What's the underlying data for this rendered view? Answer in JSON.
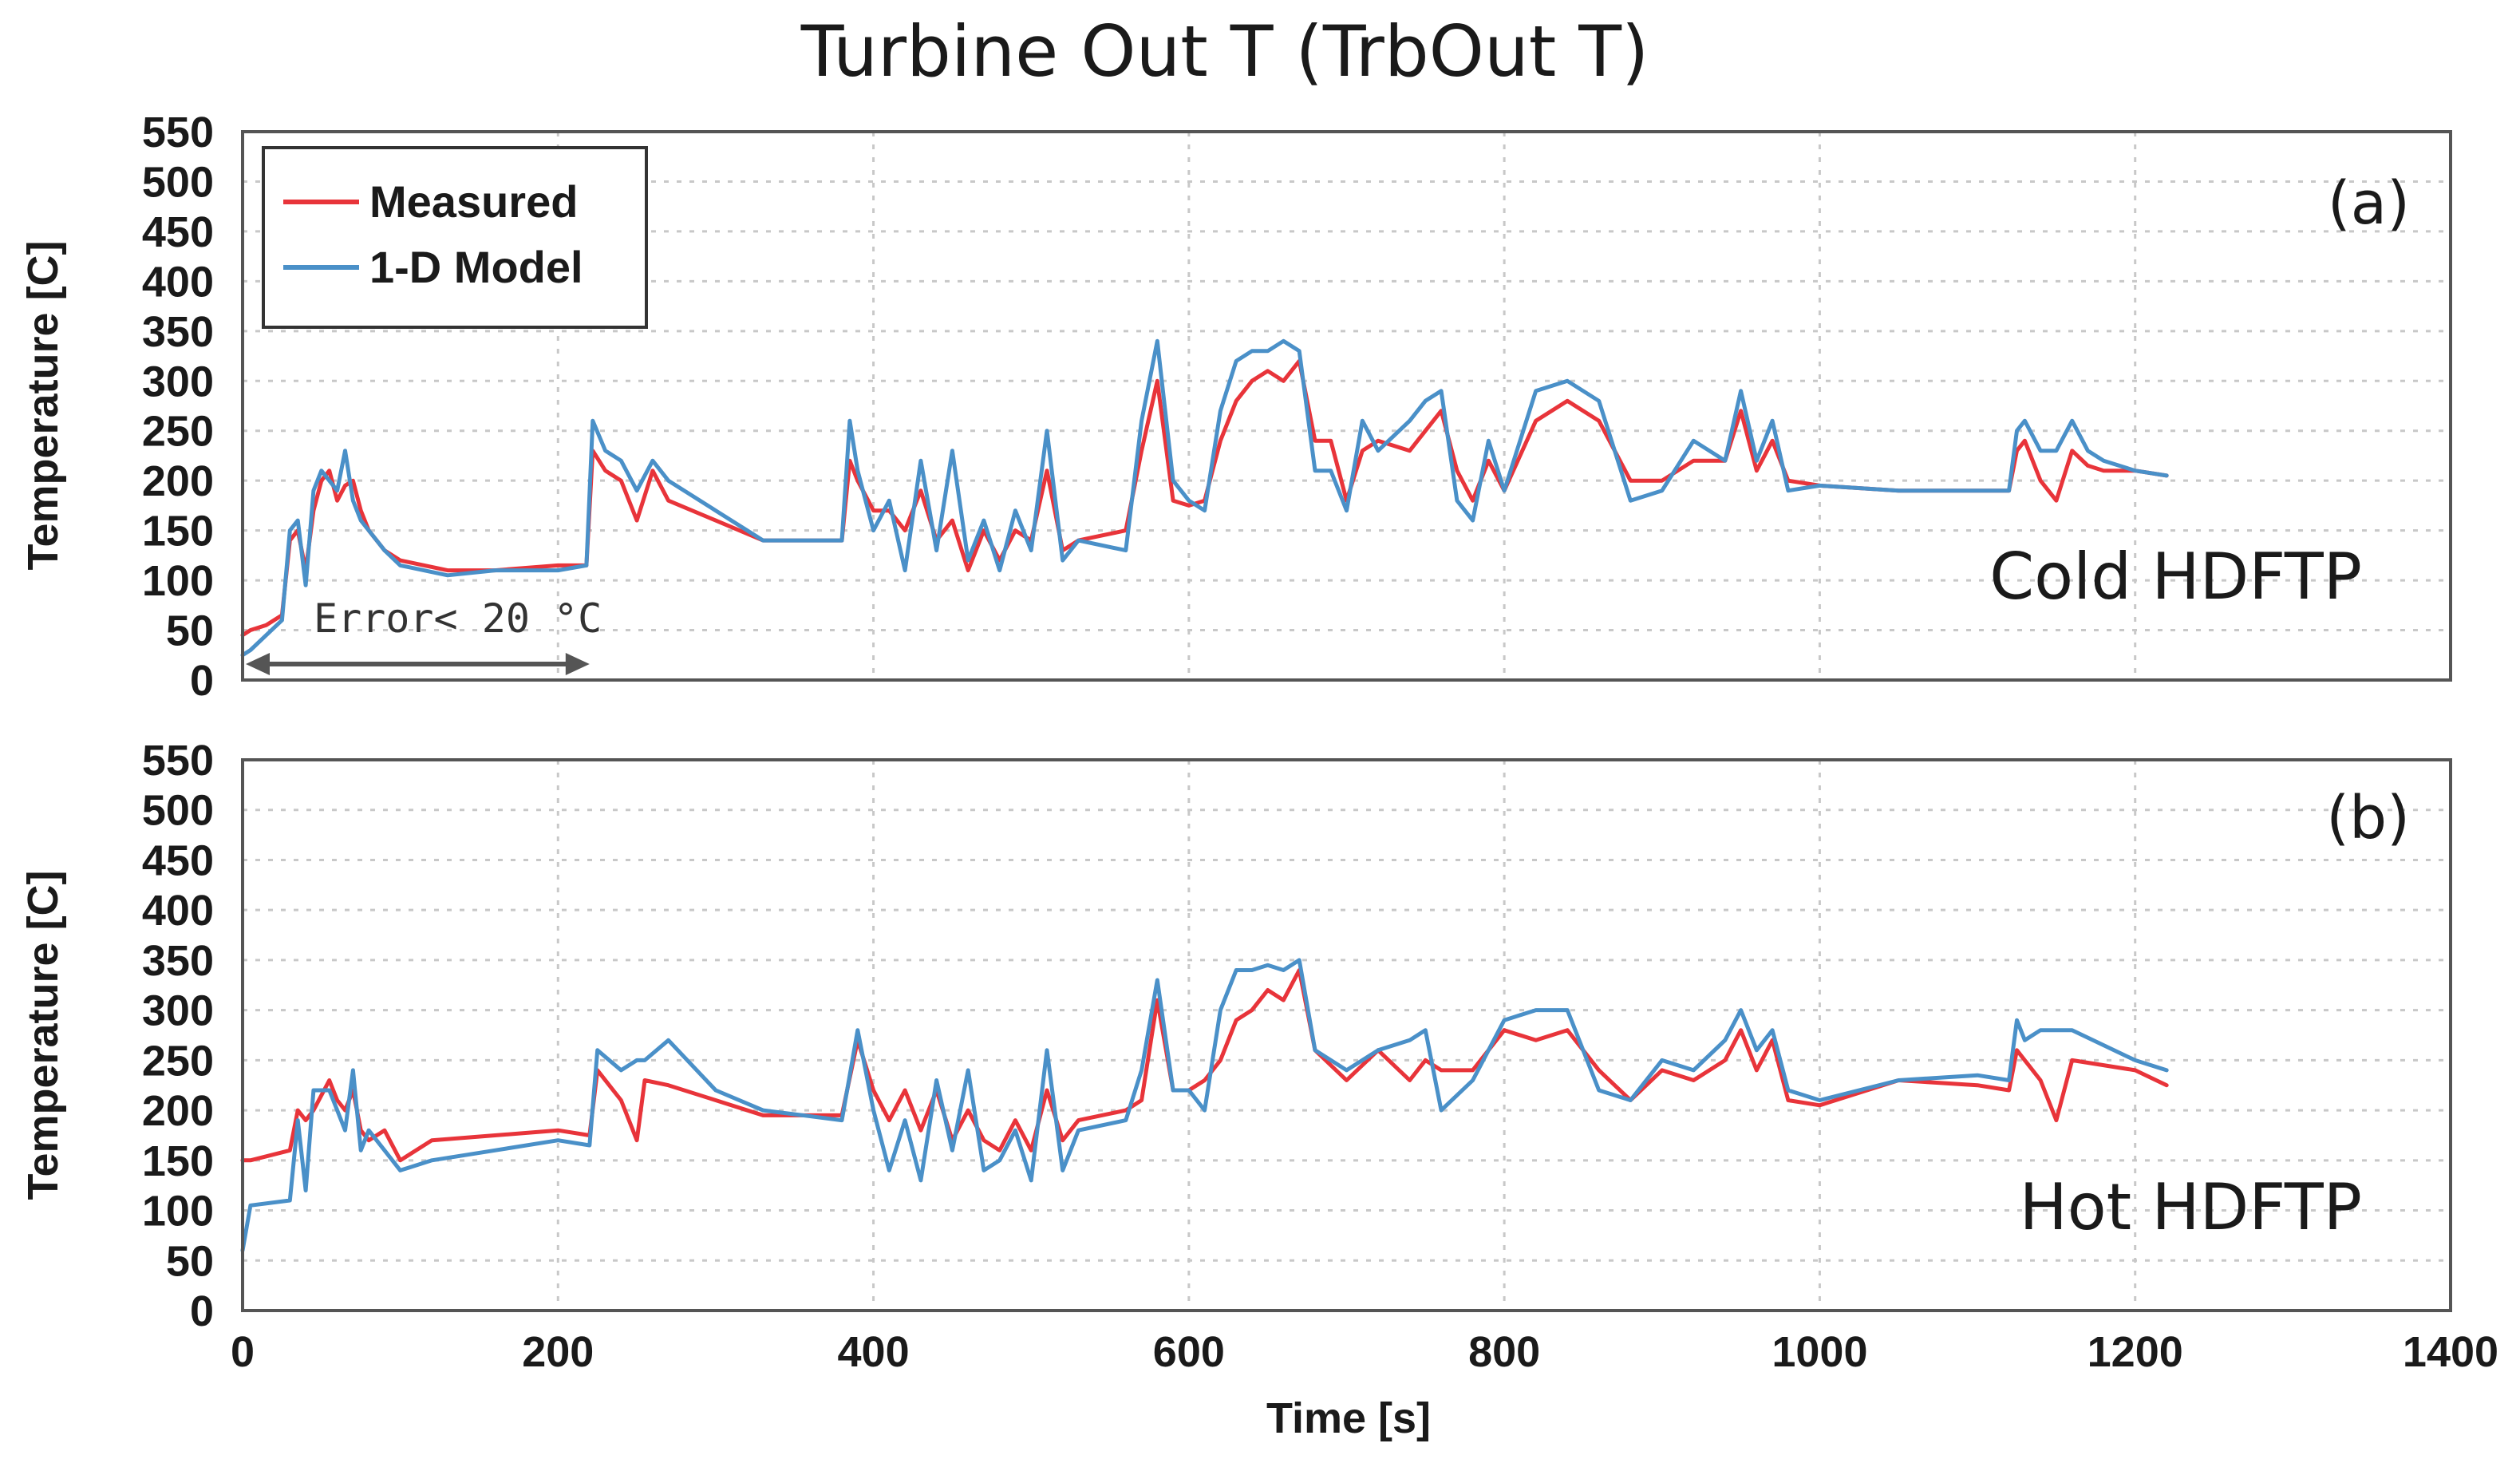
{
  "chart_data": {
    "title": "Turbine Out T (TrbOut T)",
    "type": "line",
    "legend": {
      "placement": "top-left",
      "entries": [
        {
          "name": "Measured",
          "color": "#e8343a"
        },
        {
          "name": "1-D Model",
          "color": "#4a90c8"
        }
      ]
    },
    "xlabel": "Time [s]",
    "xlim": [
      0,
      1400
    ],
    "xticks": [
      0,
      200,
      400,
      600,
      800,
      1000,
      1200,
      1400
    ],
    "xtick_labels": [
      "0",
      "200",
      "400",
      "600",
      "800",
      "1000",
      "1200",
      "1400"
    ],
    "grid": true,
    "panels": [
      {
        "label": "(a)",
        "condition": "Cold HDFTP",
        "ylabel": "Temperature [C]",
        "ylim": [
          0,
          550
        ],
        "yticks": [
          0,
          50,
          100,
          150,
          200,
          250,
          300,
          350,
          400,
          450,
          500,
          550
        ],
        "ytick_labels": [
          "0",
          "50",
          "100",
          "150",
          "200",
          "250",
          "300",
          "350",
          "400",
          "450",
          "500",
          "550"
        ],
        "annotation": {
          "text": "Error< 20 °C",
          "x_start": 0,
          "x_end": 220
        },
        "series": [
          {
            "name": "Measured",
            "color": "#e8343a",
            "x": [
              0,
              5,
              15,
              25,
              30,
              35,
              40,
              45,
              50,
              55,
              60,
              65,
              70,
              75,
              80,
              90,
              100,
              130,
              160,
              200,
              218,
              222,
              230,
              240,
              250,
              260,
              270,
              300,
              330,
              380,
              385,
              390,
              400,
              410,
              420,
              430,
              440,
              450,
              460,
              470,
              480,
              490,
              500,
              510,
              520,
              530,
              560,
              570,
              580,
              590,
              600,
              610,
              620,
              630,
              640,
              650,
              660,
              670,
              680,
              690,
              700,
              710,
              720,
              740,
              750,
              760,
              770,
              780,
              790,
              800,
              820,
              840,
              860,
              880,
              900,
              920,
              940,
              950,
              960,
              970,
              980,
              1000,
              1050,
              1100,
              1120,
              1125,
              1130,
              1140,
              1150,
              1160,
              1170,
              1180,
              1200,
              1220
            ],
            "y": [
              45,
              50,
              55,
              65,
              140,
              150,
              110,
              170,
              200,
              210,
              180,
              195,
              200,
              170,
              150,
              130,
              120,
              110,
              110,
              115,
              115,
              230,
              210,
              200,
              160,
              210,
              180,
              160,
              140,
              140,
              220,
              200,
              170,
              170,
              150,
              190,
              140,
              160,
              110,
              150,
              120,
              150,
              140,
              210,
              130,
              140,
              150,
              230,
              300,
              180,
              175,
              180,
              240,
              280,
              300,
              310,
              300,
              320,
              240,
              240,
              180,
              230,
              240,
              230,
              250,
              270,
              210,
              180,
              220,
              190,
              260,
              280,
              260,
              200,
              200,
              220,
              220,
              270,
              210,
              240,
              200,
              195,
              190,
              190,
              190,
              230,
              240,
              200,
              180,
              230,
              215,
              210,
              210,
              205
            ]
          },
          {
            "name": "1-D Model",
            "color": "#4a90c8",
            "x": [
              0,
              5,
              15,
              25,
              30,
              35,
              40,
              45,
              50,
              55,
              60,
              65,
              70,
              75,
              80,
              90,
              100,
              130,
              160,
              200,
              218,
              222,
              230,
              240,
              250,
              260,
              270,
              300,
              330,
              380,
              385,
              390,
              400,
              410,
              420,
              430,
              440,
              450,
              460,
              470,
              480,
              490,
              500,
              510,
              520,
              530,
              560,
              570,
              580,
              590,
              600,
              610,
              620,
              630,
              640,
              650,
              660,
              670,
              680,
              690,
              700,
              710,
              720,
              740,
              750,
              760,
              770,
              780,
              790,
              800,
              820,
              840,
              860,
              880,
              900,
              920,
              940,
              950,
              960,
              970,
              980,
              1000,
              1050,
              1100,
              1120,
              1125,
              1130,
              1140,
              1150,
              1160,
              1170,
              1180,
              1200,
              1220
            ],
            "y": [
              25,
              30,
              45,
              60,
              150,
              160,
              95,
              190,
              210,
              200,
              190,
              230,
              180,
              160,
              150,
              130,
              115,
              105,
              110,
              110,
              115,
              260,
              230,
              220,
              190,
              220,
              200,
              170,
              140,
              140,
              260,
              210,
              150,
              180,
              110,
              220,
              130,
              230,
              120,
              160,
              110,
              170,
              130,
              250,
              120,
              140,
              130,
              260,
              340,
              200,
              180,
              170,
              270,
              320,
              330,
              330,
              340,
              330,
              210,
              210,
              170,
              260,
              230,
              260,
              280,
              290,
              180,
              160,
              240,
              190,
              290,
              300,
              280,
              180,
              190,
              240,
              220,
              290,
              220,
              260,
              190,
              195,
              190,
              190,
              190,
              250,
              260,
              230,
              230,
              260,
              230,
              220,
              210,
              205
            ]
          }
        ]
      },
      {
        "label": "(b)",
        "condition": "Hot HDFTP",
        "ylabel": "Temperature [C]",
        "ylim": [
          0,
          550
        ],
        "yticks": [
          0,
          50,
          100,
          150,
          200,
          250,
          300,
          350,
          400,
          450,
          500,
          550
        ],
        "ytick_labels": [
          "0",
          "50",
          "100",
          "150",
          "200",
          "250",
          "300",
          "350",
          "400",
          "450",
          "500",
          "550"
        ],
        "series": [
          {
            "name": "Measured",
            "color": "#e8343a",
            "x": [
              0,
              5,
              30,
              35,
              40,
              45,
              55,
              60,
              65,
              70,
              75,
              80,
              90,
              100,
              120,
              160,
              200,
              220,
              225,
              240,
              250,
              255,
              270,
              300,
              330,
              380,
              390,
              400,
              410,
              420,
              430,
              440,
              450,
              460,
              470,
              480,
              490,
              500,
              510,
              520,
              530,
              560,
              570,
              580,
              590,
              600,
              610,
              620,
              630,
              640,
              650,
              660,
              670,
              680,
              700,
              720,
              740,
              750,
              760,
              780,
              800,
              820,
              840,
              860,
              880,
              900,
              920,
              940,
              950,
              960,
              970,
              980,
              1000,
              1050,
              1100,
              1120,
              1125,
              1130,
              1140,
              1150,
              1160,
              1200,
              1220
            ],
            "y": [
              150,
              150,
              160,
              200,
              190,
              200,
              230,
              210,
              200,
              220,
              180,
              170,
              180,
              150,
              170,
              175,
              180,
              175,
              240,
              210,
              170,
              230,
              225,
              210,
              195,
              195,
              270,
              220,
              190,
              220,
              180,
              220,
              170,
              200,
              170,
              160,
              190,
              160,
              220,
              170,
              190,
              200,
              210,
              310,
              220,
              220,
              230,
              250,
              290,
              300,
              320,
              310,
              340,
              260,
              230,
              260,
              230,
              250,
              240,
              240,
              280,
              270,
              280,
              240,
              210,
              240,
              230,
              250,
              280,
              240,
              270,
              210,
              205,
              230,
              225,
              220,
              260,
              250,
              230,
              190,
              250,
              240,
              225
            ]
          },
          {
            "name": "1-D Model",
            "color": "#4a90c8",
            "x": [
              0,
              5,
              30,
              35,
              40,
              45,
              55,
              60,
              65,
              70,
              75,
              80,
              90,
              100,
              120,
              160,
              200,
              220,
              225,
              240,
              250,
              255,
              270,
              300,
              330,
              380,
              390,
              400,
              410,
              420,
              430,
              440,
              450,
              460,
              470,
              480,
              490,
              500,
              510,
              520,
              530,
              560,
              570,
              580,
              590,
              600,
              610,
              620,
              630,
              640,
              650,
              660,
              670,
              680,
              700,
              720,
              740,
              750,
              760,
              780,
              800,
              820,
              840,
              860,
              880,
              900,
              920,
              940,
              950,
              960,
              970,
              980,
              1000,
              1050,
              1100,
              1120,
              1125,
              1130,
              1140,
              1150,
              1160,
              1200,
              1220
            ],
            "y": [
              60,
              105,
              110,
              190,
              120,
              220,
              220,
              200,
              180,
              240,
              160,
              180,
              160,
              140,
              150,
              160,
              170,
              165,
              260,
              240,
              250,
              250,
              270,
              220,
              200,
              190,
              280,
              200,
              140,
              190,
              130,
              230,
              160,
              240,
              140,
              150,
              180,
              130,
              260,
              140,
              180,
              190,
              240,
              330,
              220,
              220,
              200,
              300,
              340,
              340,
              345,
              340,
              350,
              260,
              240,
              260,
              270,
              280,
              200,
              230,
              290,
              300,
              300,
              220,
              210,
              250,
              240,
              270,
              300,
              260,
              280,
              220,
              210,
              230,
              235,
              230,
              290,
              270,
              280,
              280,
              280,
              250,
              240
            ]
          }
        ]
      }
    ]
  }
}
